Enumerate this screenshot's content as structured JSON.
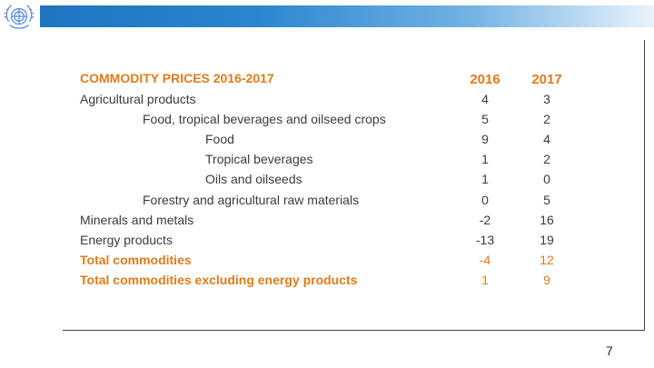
{
  "slide": {
    "page_number": "7",
    "accent_color": "#e07b1a",
    "header_color": "#1f74c0"
  },
  "table": {
    "title": "COMMODITY PRICES 2016-2017",
    "columns": [
      "2016",
      "2017"
    ],
    "rows": [
      {
        "label": "Agricultural products",
        "v2016": "4",
        "v2017": "3",
        "indent": 0,
        "highlight": false
      },
      {
        "label": "Food, tropical beverages and oilseed crops",
        "v2016": "5",
        "v2017": "2",
        "indent": 1,
        "highlight": false
      },
      {
        "label": "Food",
        "v2016": "9",
        "v2017": "4",
        "indent": 2,
        "highlight": false
      },
      {
        "label": "Tropical beverages",
        "v2016": "1",
        "v2017": "2",
        "indent": 2,
        "highlight": false
      },
      {
        "label": "Oils and oilseeds",
        "v2016": "1",
        "v2017": "0",
        "indent": 2,
        "highlight": false
      },
      {
        "label": "Forestry and agricultural raw materials",
        "v2016": "0",
        "v2017": "5",
        "indent": 1,
        "highlight": false
      },
      {
        "label": "Minerals and metals",
        "v2016": "-2",
        "v2017": "16",
        "indent": 0,
        "highlight": false
      },
      {
        "label": "Energy products",
        "v2016": "-13",
        "v2017": "19",
        "indent": 0,
        "highlight": false
      },
      {
        "label": "Total commodities",
        "v2016": "-4",
        "v2017": "12",
        "indent": 0,
        "highlight": true
      },
      {
        "label": "Total commodities excluding energy products",
        "v2016": "1",
        "v2017": "9",
        "indent": 0,
        "highlight": true
      }
    ]
  }
}
